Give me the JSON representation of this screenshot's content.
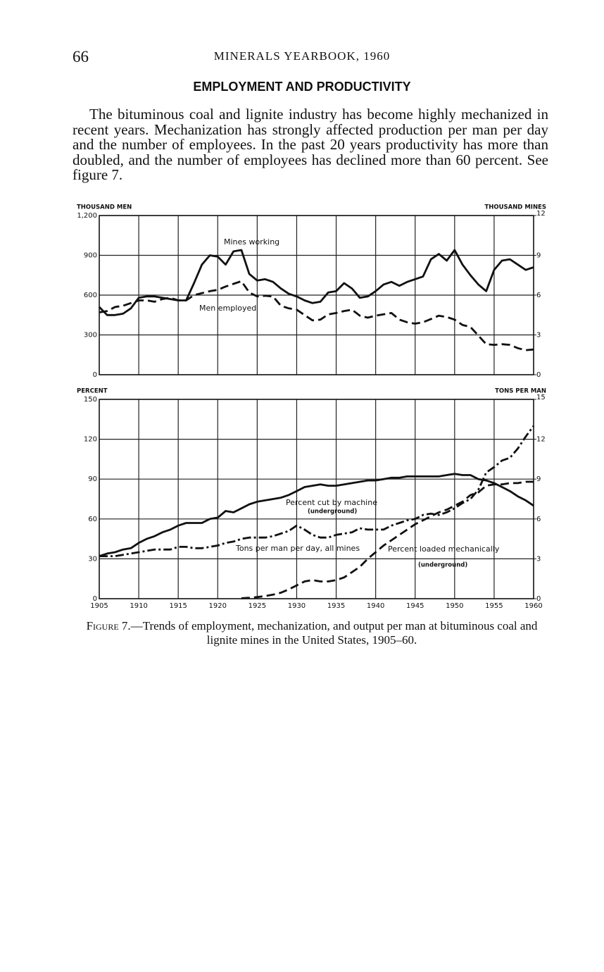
{
  "page": {
    "number": "66",
    "running_head": "MINERALS YEARBOOK, 1960"
  },
  "heading": "EMPLOYMENT AND PRODUCTIVITY",
  "paragraph": "The bituminous coal and lignite industry has become highly mechanized in recent years. Mechanization has strongly affected production per man per day and the number of employees. In the past 20 years productivity has more than doubled, and the number of employees has declined more than 60 percent. See figure 7.",
  "caption": {
    "label": "Figure 7.",
    "text": "—Trends of employment, mechanization, and output per man at bituminous coal and lignite mines in the United States, 1905–60."
  },
  "chart_data": [
    {
      "type": "line",
      "ylabel": "THOUSAND MEN",
      "y2label": "THOUSAND MINES",
      "x": [
        1905,
        1906,
        1907,
        1908,
        1909,
        1910,
        1911,
        1912,
        1913,
        1914,
        1915,
        1916,
        1917,
        1918,
        1919,
        1920,
        1921,
        1922,
        1923,
        1924,
        1925,
        1926,
        1927,
        1928,
        1929,
        1930,
        1931,
        1932,
        1933,
        1934,
        1935,
        1936,
        1937,
        1938,
        1939,
        1940,
        1941,
        1942,
        1943,
        1944,
        1945,
        1946,
        1947,
        1948,
        1949,
        1950,
        1951,
        1952,
        1953,
        1954,
        1955,
        1956,
        1957,
        1958,
        1959,
        1960
      ],
      "xlim": [
        1905,
        1960
      ],
      "ylim": [
        0,
        1200
      ],
      "yticks": [
        0,
        300,
        600,
        900,
        {
          "value": 1200,
          "label": "1,200"
        }
      ],
      "y2lim": [
        0,
        12
      ],
      "y2ticks": [
        0,
        3,
        6,
        9,
        12
      ],
      "grid": true,
      "series": [
        {
          "name": "Mines working",
          "color": "#111111",
          "style": "solid",
          "axis": "y2",
          "values": [
            5.1,
            4.5,
            4.5,
            4.6,
            5.0,
            5.8,
            5.9,
            5.9,
            5.8,
            5.7,
            5.6,
            5.6,
            6.9,
            8.3,
            9.0,
            8.9,
            8.3,
            9.3,
            9.4,
            7.6,
            7.1,
            7.2,
            7.0,
            6.5,
            6.1,
            5.9,
            5.6,
            5.4,
            5.5,
            6.2,
            6.3,
            6.9,
            6.5,
            5.8,
            5.9,
            6.3,
            6.8,
            7.0,
            6.7,
            7.0,
            7.2,
            7.4,
            8.7,
            9.1,
            8.6,
            9.4,
            8.3,
            7.5,
            6.8,
            6.3,
            7.9,
            8.6,
            8.7,
            8.3,
            7.9,
            8.1
          ]
        },
        {
          "name": "Men employed",
          "color": "#111111",
          "style": "dashed",
          "values": [
            470,
            480,
            510,
            520,
            540,
            560,
            560,
            550,
            570,
            580,
            560,
            560,
            600,
            615,
            630,
            640,
            665,
            685,
            705,
            620,
            590,
            595,
            590,
            520,
            500,
            490,
            450,
            410,
            415,
            455,
            465,
            480,
            490,
            445,
            430,
            445,
            455,
            465,
            415,
            395,
            385,
            395,
            420,
            445,
            435,
            415,
            375,
            360,
            295,
            230,
            225,
            230,
            225,
            200,
            185,
            190
          ]
        }
      ]
    },
    {
      "type": "line",
      "ylabel": "PERCENT",
      "y2label": "TONS PER MAN",
      "x": [
        1905,
        1906,
        1907,
        1908,
        1909,
        1910,
        1911,
        1912,
        1913,
        1914,
        1915,
        1916,
        1917,
        1918,
        1919,
        1920,
        1921,
        1922,
        1923,
        1924,
        1925,
        1926,
        1927,
        1928,
        1929,
        1930,
        1931,
        1932,
        1933,
        1934,
        1935,
        1936,
        1937,
        1938,
        1939,
        1940,
        1941,
        1942,
        1943,
        1944,
        1945,
        1946,
        1947,
        1948,
        1949,
        1950,
        1951,
        1952,
        1953,
        1954,
        1955,
        1956,
        1957,
        1958,
        1959,
        1960
      ],
      "xlim": [
        1905,
        1960
      ],
      "xticks": [
        1905,
        1910,
        1915,
        1920,
        1925,
        1930,
        1935,
        1940,
        1945,
        1950,
        1955,
        1960
      ],
      "ylim": [
        0,
        150
      ],
      "yticks": [
        0,
        30,
        60,
        90,
        120,
        150
      ],
      "y2lim": [
        0,
        15
      ],
      "y2ticks": [
        0,
        3,
        6,
        9,
        12,
        15
      ],
      "grid": true,
      "series": [
        {
          "name": "Percent cut by machine",
          "color": "#111111",
          "style": "solid",
          "values": [
            32,
            34,
            35,
            37,
            38,
            42,
            45,
            47,
            50,
            52,
            55,
            57,
            57,
            57,
            60,
            61,
            66,
            65,
            68,
            71,
            73,
            74,
            75,
            76,
            78,
            81,
            84,
            85,
            86,
            85,
            85,
            86,
            87,
            88,
            89,
            89,
            90,
            91,
            91,
            92,
            92,
            92,
            92,
            92,
            93,
            94,
            93,
            93,
            90,
            89,
            87,
            84,
            81,
            77,
            74,
            70
          ]
        },
        {
          "name": "Percent loaded mechanically",
          "color": "#111111",
          "style": "dashed",
          "values": [
            null,
            null,
            null,
            null,
            null,
            null,
            null,
            null,
            null,
            null,
            null,
            null,
            null,
            null,
            null,
            null,
            null,
            null,
            0.3,
            0.7,
            1.2,
            2,
            3,
            4.5,
            7,
            10,
            13,
            14,
            13,
            13,
            14,
            16,
            20,
            24,
            30,
            35,
            40,
            44,
            48,
            52,
            56,
            59,
            62,
            65,
            67,
            70,
            73,
            78,
            80,
            85,
            86,
            86,
            87,
            87,
            88,
            88
          ]
        },
        {
          "name": "Tons per man per day, all mines",
          "color": "#111111",
          "style": "dashdot",
          "axis": "y2",
          "values": [
            3.2,
            3.2,
            3.2,
            3.3,
            3.4,
            3.5,
            3.6,
            3.7,
            3.7,
            3.7,
            3.9,
            3.9,
            3.8,
            3.8,
            3.9,
            4.0,
            4.2,
            4.3,
            4.5,
            4.6,
            4.6,
            4.6,
            4.7,
            4.9,
            5.1,
            5.5,
            5.2,
            4.8,
            4.6,
            4.6,
            4.8,
            4.9,
            5.0,
            5.3,
            5.2,
            5.2,
            5.2,
            5.5,
            5.7,
            5.9,
            6.0,
            6.3,
            6.4,
            6.3,
            6.5,
            6.8,
            7.2,
            7.5,
            8.2,
            9.5,
            9.9,
            10.4,
            10.6,
            11.3,
            12.2,
            13.0
          ]
        }
      ],
      "annotations": [
        "(underground)",
        "(underground)"
      ]
    }
  ]
}
